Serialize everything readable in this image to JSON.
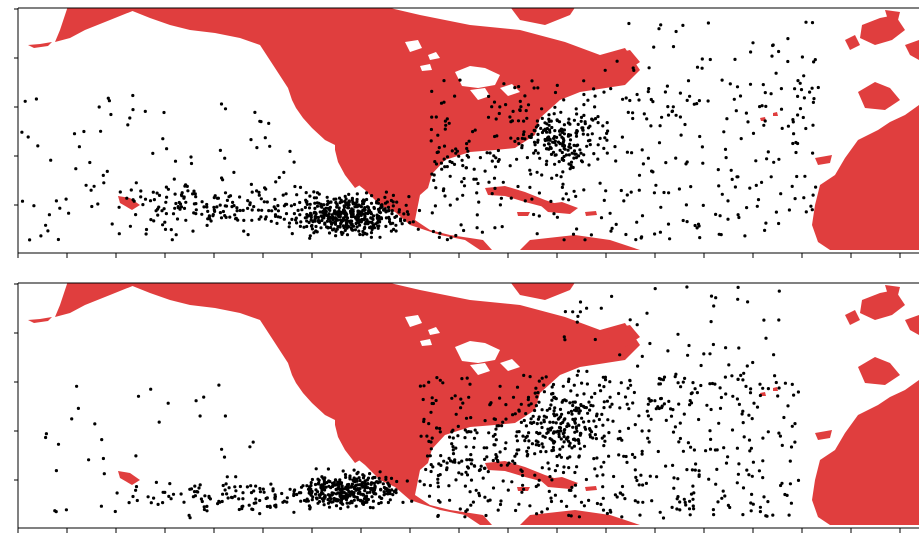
{
  "colors": {
    "land": "#e03e3e",
    "ocean": "#ffffff",
    "lakes": "#ffffff",
    "points": "#000000",
    "axes": "#000000"
  },
  "panels": [
    {
      "id": "top",
      "description_visible": ""
    },
    {
      "id": "bottom",
      "description_visible": ""
    }
  ],
  "icons": {
    "point_marker": "dot"
  }
}
